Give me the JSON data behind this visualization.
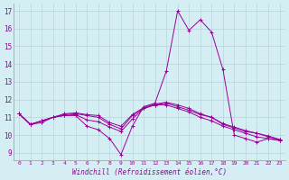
{
  "xlabel": "Windchill (Refroidissement éolien,°C)",
  "bg_color": "#d4eef4",
  "grid_color": "#b8d4da",
  "line_color": "#990099",
  "xlim": [
    -0.5,
    23.5
  ],
  "ylim": [
    8.6,
    17.4
  ],
  "yticks": [
    9,
    10,
    11,
    12,
    13,
    14,
    15,
    16,
    17
  ],
  "xticks": [
    0,
    1,
    2,
    3,
    4,
    5,
    6,
    7,
    8,
    9,
    10,
    11,
    12,
    13,
    14,
    15,
    16,
    17,
    18,
    19,
    20,
    21,
    22,
    23
  ],
  "series": [
    [
      11.2,
      10.6,
      10.7,
      11.0,
      11.1,
      11.1,
      10.5,
      10.3,
      9.8,
      8.9,
      10.5,
      11.6,
      11.8,
      13.6,
      17.0,
      15.9,
      16.5,
      15.8,
      13.7,
      10.0,
      9.8,
      9.6,
      9.8,
      9.7
    ],
    [
      11.2,
      10.6,
      10.8,
      11.0,
      11.1,
      11.15,
      10.85,
      10.75,
      10.45,
      10.2,
      10.9,
      11.5,
      11.7,
      11.7,
      11.5,
      11.3,
      11.0,
      10.8,
      10.5,
      10.3,
      10.1,
      9.9,
      9.8,
      9.7
    ],
    [
      11.2,
      10.6,
      10.8,
      11.0,
      11.15,
      11.2,
      11.1,
      11.0,
      10.6,
      10.35,
      11.1,
      11.5,
      11.7,
      11.8,
      11.6,
      11.4,
      11.15,
      11.0,
      10.6,
      10.4,
      10.2,
      10.1,
      9.9,
      9.75
    ],
    [
      11.2,
      10.6,
      10.8,
      11.0,
      11.2,
      11.25,
      11.15,
      11.1,
      10.7,
      10.5,
      11.15,
      11.55,
      11.75,
      11.85,
      11.7,
      11.5,
      11.2,
      11.0,
      10.65,
      10.45,
      10.25,
      10.1,
      9.95,
      9.75
    ]
  ]
}
